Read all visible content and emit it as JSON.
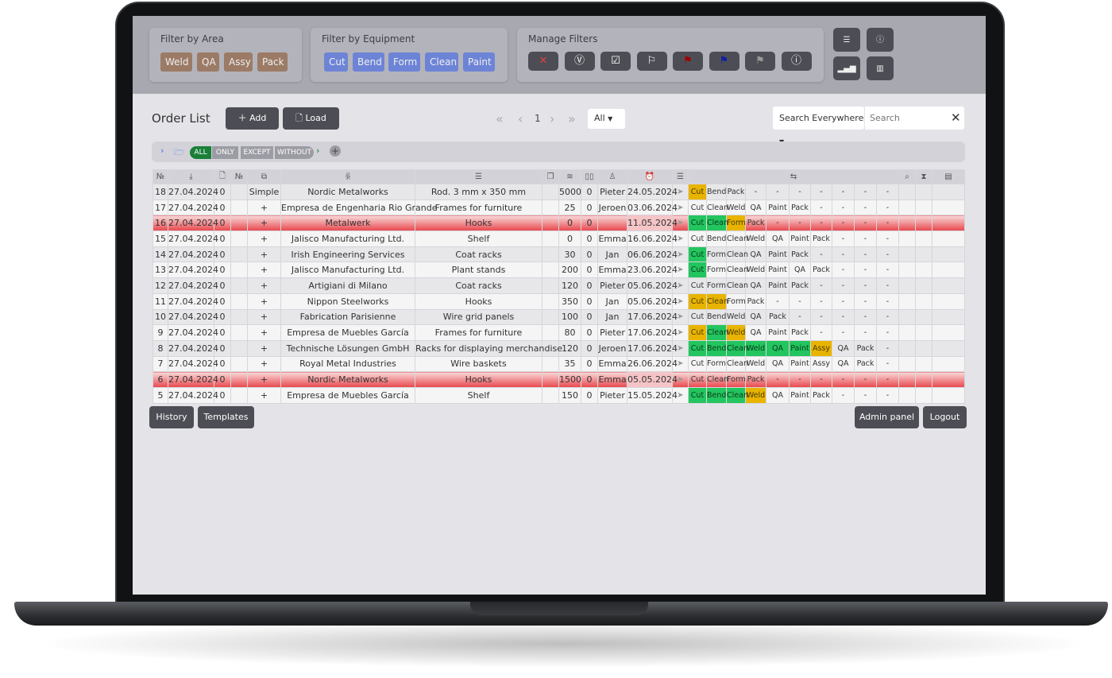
{
  "filters": {
    "area": {
      "title": "Filter by Area",
      "chips": [
        "Weld",
        "QA",
        "Assy",
        "Pack"
      ]
    },
    "equipment": {
      "title": "Filter by Equipment",
      "chips": [
        "Cut",
        "Bend",
        "Form",
        "Clean",
        "Paint"
      ]
    },
    "manage": {
      "title": "Manage Filters",
      "buttons": [
        {
          "icon": "close-icon",
          "glyph": "✕",
          "color": "#e04040"
        },
        {
          "icon": "eye-check-icon",
          "glyph": "Ⓥ",
          "color": "#fff"
        },
        {
          "icon": "checkbox-icon",
          "glyph": "☑",
          "color": "#fff"
        },
        {
          "icon": "flag-outline-icon",
          "glyph": "⚐",
          "color": "#fff"
        },
        {
          "icon": "flag-red-icon",
          "glyph": "⚑",
          "color": "#a00000"
        },
        {
          "icon": "flag-blue-icon",
          "glyph": "⚑",
          "color": "#1020a0"
        },
        {
          "icon": "flag-gray-icon",
          "glyph": "⚑",
          "color": "#999"
        },
        {
          "icon": "alert-icon",
          "glyph": "ⓘ",
          "color": "#fff"
        }
      ]
    }
  },
  "side_buttons": [
    {
      "icon": "sliders-icon",
      "glyph": "☰"
    },
    {
      "icon": "info-icon",
      "glyph": "ⓘ"
    },
    {
      "icon": "bar-chart-icon",
      "glyph": "▂▄▆"
    },
    {
      "icon": "histogram-icon",
      "glyph": "▥"
    }
  ],
  "order_list": {
    "title": "Order List",
    "add": "Add",
    "load": "Load",
    "page": "1",
    "page_size": "All",
    "search_scope": "Search Everywhere",
    "search_placeholder": "Search"
  },
  "filter_bar": {
    "tags": [
      "ALL",
      "ONLY",
      "EXCEPT",
      "WITHOUT"
    ],
    "active_color": "#1a7f37"
  },
  "colors": {
    "yellow": "#e8b400",
    "green": "#22c55e",
    "red": "#e8464c"
  },
  "rows": [
    {
      "id": "18",
      "date": "27.04.2024",
      "n": "0",
      "type": "Simple",
      "customer": "Nordic Metalworks",
      "product": "Rod. 3 mm x 350 mm",
      "qty": "5000",
      "q2": "0",
      "person": "Pieter",
      "due": "24.05.2024",
      "steps": [
        [
          "Cut",
          "y"
        ],
        [
          "Bend",
          ""
        ],
        [
          "Pack",
          ""
        ],
        [
          "-",
          ""
        ],
        [
          "-",
          ""
        ],
        [
          "-",
          ""
        ],
        [
          "-",
          ""
        ],
        [
          "-",
          ""
        ],
        [
          "-",
          ""
        ],
        [
          "-",
          ""
        ]
      ]
    },
    {
      "id": "17",
      "date": "27.04.2024",
      "n": "0",
      "type": "+",
      "customer": "Empresa de Engenharia Rio Grande",
      "product": "Frames for furniture",
      "qty": "25",
      "q2": "0",
      "person": "Jeroen",
      "due": "03.06.2024",
      "steps": [
        [
          "Cut",
          ""
        ],
        [
          "Clean",
          ""
        ],
        [
          "Weld",
          ""
        ],
        [
          "QA",
          ""
        ],
        [
          "Paint",
          ""
        ],
        [
          "Pack",
          ""
        ],
        [
          "-",
          ""
        ],
        [
          "-",
          ""
        ],
        [
          "-",
          ""
        ],
        [
          "-",
          ""
        ]
      ]
    },
    {
      "id": "16",
      "red": true,
      "date": "27.04.2024",
      "n": "0",
      "type": "+",
      "customer": "Metalwerk",
      "product": "Hooks",
      "qty": "0",
      "q2": "0",
      "person": "",
      "due": "11.05.2024",
      "steps": [
        [
          "Cut",
          "g"
        ],
        [
          "Clean",
          "g"
        ],
        [
          "Form",
          "y"
        ],
        [
          "Pack",
          ""
        ],
        [
          "-",
          ""
        ],
        [
          "-",
          ""
        ],
        [
          "-",
          ""
        ],
        [
          "-",
          ""
        ],
        [
          "-",
          ""
        ],
        [
          "-",
          ""
        ]
      ]
    },
    {
      "id": "15",
      "date": "27.04.2024",
      "n": "0",
      "type": "+",
      "customer": "Jalisco Manufacturing Ltd.",
      "product": "Shelf",
      "qty": "0",
      "q2": "0",
      "person": "Emma",
      "due": "16.06.2024",
      "steps": [
        [
          "Cut",
          ""
        ],
        [
          "Bend",
          ""
        ],
        [
          "Clean",
          ""
        ],
        [
          "Weld",
          ""
        ],
        [
          "QA",
          ""
        ],
        [
          "Paint",
          ""
        ],
        [
          "Pack",
          ""
        ],
        [
          "-",
          ""
        ],
        [
          "-",
          ""
        ],
        [
          "-",
          ""
        ]
      ]
    },
    {
      "id": "14",
      "date": "27.04.2024",
      "n": "0",
      "type": "+",
      "customer": "Irish Engineering Services",
      "product": "Coat racks",
      "qty": "30",
      "q2": "0",
      "person": "Jan",
      "due": "06.06.2024",
      "steps": [
        [
          "Cut",
          "g"
        ],
        [
          "Form",
          ""
        ],
        [
          "Clean",
          ""
        ],
        [
          "QA",
          ""
        ],
        [
          "Paint",
          ""
        ],
        [
          "Pack",
          ""
        ],
        [
          "-",
          ""
        ],
        [
          "-",
          ""
        ],
        [
          "-",
          ""
        ],
        [
          "-",
          ""
        ]
      ]
    },
    {
      "id": "13",
      "date": "27.04.2024",
      "n": "0",
      "type": "+",
      "customer": "Jalisco Manufacturing Ltd.",
      "product": "Plant stands",
      "qty": "200",
      "q2": "0",
      "person": "Emma",
      "due": "23.06.2024",
      "steps": [
        [
          "Cut",
          "g"
        ],
        [
          "Form",
          ""
        ],
        [
          "Clean",
          ""
        ],
        [
          "Weld",
          ""
        ],
        [
          "Paint",
          ""
        ],
        [
          "QA",
          ""
        ],
        [
          "Pack",
          ""
        ],
        [
          "-",
          ""
        ],
        [
          "-",
          ""
        ],
        [
          "-",
          ""
        ]
      ]
    },
    {
      "id": "12",
      "date": "27.04.2024",
      "n": "0",
      "type": "+",
      "customer": "Artigiani di Milano",
      "product": "Coat racks",
      "qty": "120",
      "q2": "0",
      "person": "Pieter",
      "due": "05.06.2024",
      "steps": [
        [
          "Cut",
          ""
        ],
        [
          "Form",
          ""
        ],
        [
          "Clean",
          ""
        ],
        [
          "QA",
          ""
        ],
        [
          "Paint",
          ""
        ],
        [
          "Pack",
          ""
        ],
        [
          "-",
          ""
        ],
        [
          "-",
          ""
        ],
        [
          "-",
          ""
        ],
        [
          "-",
          ""
        ]
      ]
    },
    {
      "id": "11",
      "date": "27.04.2024",
      "n": "0",
      "type": "+",
      "customer": "Nippon Steelworks",
      "product": "Hooks",
      "qty": "350",
      "q2": "0",
      "person": "Jan",
      "due": "05.06.2024",
      "steps": [
        [
          "Cut",
          "y"
        ],
        [
          "Clean",
          "y"
        ],
        [
          "Form",
          ""
        ],
        [
          "Pack",
          ""
        ],
        [
          "-",
          ""
        ],
        [
          "-",
          ""
        ],
        [
          "-",
          ""
        ],
        [
          "-",
          ""
        ],
        [
          "-",
          ""
        ],
        [
          "-",
          ""
        ]
      ]
    },
    {
      "id": "10",
      "date": "27.04.2024",
      "n": "0",
      "type": "+",
      "customer": "Fabrication Parisienne",
      "product": "Wire grid panels",
      "qty": "100",
      "q2": "0",
      "person": "Jan",
      "due": "17.06.2024",
      "steps": [
        [
          "Cut",
          ""
        ],
        [
          "Bend",
          ""
        ],
        [
          "Weld",
          ""
        ],
        [
          "QA",
          ""
        ],
        [
          "Pack",
          ""
        ],
        [
          "-",
          ""
        ],
        [
          "-",
          ""
        ],
        [
          "-",
          ""
        ],
        [
          "-",
          ""
        ],
        [
          "-",
          ""
        ]
      ]
    },
    {
      "id": "9",
      "date": "27.04.2024",
      "n": "0",
      "type": "+",
      "customer": "Empresa de Muebles García",
      "product": "Frames for furniture",
      "qty": "80",
      "q2": "0",
      "person": "Pieter",
      "due": "17.06.2024",
      "steps": [
        [
          "Cut",
          "y"
        ],
        [
          "Clean",
          "g"
        ],
        [
          "Weld",
          "y"
        ],
        [
          "QA",
          ""
        ],
        [
          "Paint",
          ""
        ],
        [
          "Pack",
          ""
        ],
        [
          "-",
          ""
        ],
        [
          "-",
          ""
        ],
        [
          "-",
          ""
        ],
        [
          "-",
          ""
        ]
      ]
    },
    {
      "id": "8",
      "date": "27.04.2024",
      "n": "0",
      "type": "+",
      "customer": "Technische Lösungen GmbH",
      "product": "Racks for displaying merchandise",
      "qty": "120",
      "q2": "0",
      "person": "Jeroen",
      "due": "17.06.2024",
      "steps": [
        [
          "Cut",
          "g"
        ],
        [
          "Bend",
          "g"
        ],
        [
          "Clean",
          "g"
        ],
        [
          "Weld",
          "g"
        ],
        [
          "QA",
          "g"
        ],
        [
          "Paint",
          "g"
        ],
        [
          "Assy",
          "y"
        ],
        [
          "QA",
          ""
        ],
        [
          "Pack",
          ""
        ],
        [
          "-",
          ""
        ]
      ]
    },
    {
      "id": "7",
      "date": "27.04.2024",
      "n": "0",
      "type": "+",
      "customer": "Royal Metal Industries",
      "product": "Wire baskets",
      "qty": "35",
      "q2": "0",
      "person": "Emma",
      "due": "26.06.2024",
      "steps": [
        [
          "Cut",
          ""
        ],
        [
          "Form",
          ""
        ],
        [
          "Clean",
          ""
        ],
        [
          "Weld",
          ""
        ],
        [
          "QA",
          ""
        ],
        [
          "Paint",
          ""
        ],
        [
          "Assy",
          ""
        ],
        [
          "QA",
          ""
        ],
        [
          "Pack",
          ""
        ],
        [
          "-",
          ""
        ]
      ]
    },
    {
      "id": "6",
      "red": true,
      "date": "27.04.2024",
      "n": "0",
      "type": "+",
      "customer": "Nordic Metalworks",
      "product": "Hooks",
      "qty": "1500",
      "q2": "0",
      "person": "Emma",
      "due": "05.05.2024",
      "steps": [
        [
          "Cut",
          ""
        ],
        [
          "Clean",
          ""
        ],
        [
          "Form",
          ""
        ],
        [
          "Pack",
          ""
        ],
        [
          "-",
          ""
        ],
        [
          "-",
          ""
        ],
        [
          "-",
          ""
        ],
        [
          "-",
          ""
        ],
        [
          "-",
          ""
        ],
        [
          "-",
          ""
        ]
      ]
    },
    {
      "id": "5",
      "date": "27.04.2024",
      "n": "0",
      "type": "+",
      "customer": "Empresa de Muebles García",
      "product": "Shelf",
      "qty": "150",
      "q2": "0",
      "person": "Pieter",
      "due": "15.05.2024",
      "steps": [
        [
          "Cut",
          "g"
        ],
        [
          "Bend",
          "g"
        ],
        [
          "Clean",
          "g"
        ],
        [
          "Weld",
          "y"
        ],
        [
          "QA",
          ""
        ],
        [
          "Paint",
          ""
        ],
        [
          "Pack",
          ""
        ],
        [
          "-",
          ""
        ],
        [
          "-",
          ""
        ],
        [
          "-",
          ""
        ]
      ]
    }
  ],
  "footer": {
    "history": "History",
    "templates": "Templates",
    "admin": "Admin panel",
    "logout": "Logout"
  }
}
